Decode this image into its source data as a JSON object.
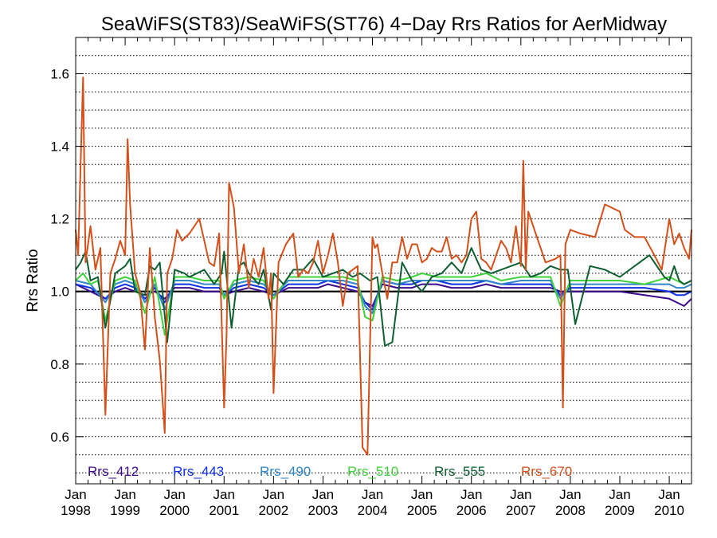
{
  "chart_data": {
    "type": "line",
    "title": "SeaWiFS(ST83)/SeaWiFS(ST76) 4−Day Rrs Ratios for AerMidway",
    "xlabel": "",
    "ylabel": "Rrs Ratio",
    "xlim": [
      1998.0,
      2010.45
    ],
    "ylim": [
      0.47,
      1.7
    ],
    "y_ticks": [
      0.6,
      0.8,
      1.0,
      1.2,
      1.4,
      1.6
    ],
    "x_ticks": [
      {
        "month": "Jan",
        "year": "1998",
        "x": 1998.0
      },
      {
        "month": "Jan",
        "year": "1999",
        "x": 1999.0
      },
      {
        "month": "Jan",
        "year": "2000",
        "x": 2000.0
      },
      {
        "month": "Jan",
        "year": "2001",
        "x": 2001.0
      },
      {
        "month": "Jan",
        "year": "2002",
        "x": 2002.0
      },
      {
        "month": "Jan",
        "year": "2003",
        "x": 2003.0
      },
      {
        "month": "Jan",
        "year": "2004",
        "x": 2004.0
      },
      {
        "month": "Jan",
        "year": "2005",
        "x": 2005.0
      },
      {
        "month": "Jan",
        "year": "2006",
        "x": 2006.0
      },
      {
        "month": "Jan",
        "year": "2007",
        "x": 2007.0
      },
      {
        "month": "Jan",
        "year": "2008",
        "x": 2008.0
      },
      {
        "month": "Jan",
        "year": "2009",
        "x": 2009.0
      },
      {
        "month": "Jan",
        "year": "2010",
        "x": 2010.0
      }
    ],
    "grid": "horizontal dotted",
    "reference_line": 1.0,
    "legend_position": "bottom",
    "series": [
      {
        "name": "Rrs_412",
        "color": "#3b0a8c",
        "x": [
          1998.0,
          1998.3,
          1998.6,
          1998.8,
          1999.0,
          1999.2,
          1999.4,
          1999.6,
          1999.8,
          2000.0,
          2000.3,
          2000.6,
          2000.9,
          2001.0,
          2001.2,
          2001.5,
          2001.8,
          2002.0,
          2002.3,
          2002.6,
          2002.9,
          2003.1,
          2003.4,
          2003.7,
          2003.85,
          2004.0,
          2004.2,
          2004.5,
          2004.8,
          2005.0,
          2005.3,
          2005.6,
          2006.0,
          2006.3,
          2006.6,
          2007.0,
          2007.3,
          2007.6,
          2007.8,
          2008.0,
          2008.5,
          2009.0,
          2009.5,
          2010.0,
          2010.15,
          2010.3,
          2010.45
        ],
        "y": [
          1.02,
          1.0,
          0.98,
          1.0,
          1.01,
          1.0,
          0.99,
          1.0,
          0.98,
          1.01,
          1.01,
          1.0,
          1.0,
          0.99,
          1.0,
          1.01,
          1.0,
          0.99,
          1.01,
          1.01,
          1.01,
          1.02,
          1.01,
          1.0,
          0.97,
          0.96,
          1.02,
          1.01,
          1.01,
          1.02,
          1.02,
          1.01,
          1.01,
          1.02,
          1.01,
          1.01,
          1.01,
          1.01,
          1.0,
          1.0,
          1.0,
          1.0,
          0.99,
          0.98,
          0.97,
          0.96,
          0.98
        ]
      },
      {
        "name": "Rrs_443",
        "color": "#1030e6",
        "x": [
          1998.0,
          1998.3,
          1998.6,
          1998.8,
          1999.0,
          1999.2,
          1999.4,
          1999.6,
          1999.8,
          2000.0,
          2000.3,
          2000.6,
          2000.9,
          2001.0,
          2001.2,
          2001.5,
          2001.8,
          2002.0,
          2002.3,
          2002.6,
          2002.9,
          2003.1,
          2003.4,
          2003.7,
          2003.85,
          2004.0,
          2004.2,
          2004.5,
          2004.8,
          2005.0,
          2005.3,
          2005.6,
          2006.0,
          2006.3,
          2006.6,
          2007.0,
          2007.3,
          2007.6,
          2007.8,
          2008.0,
          2008.5,
          2009.0,
          2009.5,
          2010.0,
          2010.15,
          2010.3,
          2010.45
        ],
        "y": [
          1.02,
          1.01,
          0.98,
          1.01,
          1.02,
          1.01,
          0.98,
          1.01,
          0.97,
          1.02,
          1.02,
          1.01,
          1.01,
          0.99,
          1.01,
          1.02,
          1.01,
          0.99,
          1.02,
          1.02,
          1.02,
          1.03,
          1.02,
          1.01,
          0.97,
          0.95,
          1.03,
          1.02,
          1.02,
          1.03,
          1.03,
          1.02,
          1.02,
          1.03,
          1.02,
          1.02,
          1.02,
          1.02,
          0.99,
          1.01,
          1.01,
          1.01,
          1.01,
          1.0,
          0.99,
          0.99,
          1.0
        ]
      },
      {
        "name": "Rrs_490",
        "color": "#2f86c8",
        "x": [
          1998.0,
          1998.3,
          1998.6,
          1998.8,
          1999.0,
          1999.2,
          1999.4,
          1999.6,
          1999.8,
          2000.0,
          2000.3,
          2000.6,
          2000.9,
          2001.0,
          2001.2,
          2001.5,
          2001.8,
          2002.0,
          2002.3,
          2002.6,
          2002.9,
          2003.1,
          2003.4,
          2003.7,
          2003.85,
          2004.0,
          2004.2,
          2004.5,
          2004.8,
          2005.0,
          2005.3,
          2005.6,
          2006.0,
          2006.3,
          2006.6,
          2007.0,
          2007.3,
          2007.6,
          2007.8,
          2008.0,
          2008.5,
          2009.0,
          2009.5,
          2010.0,
          2010.15,
          2010.3,
          2010.45
        ],
        "y": [
          1.03,
          1.02,
          0.97,
          1.02,
          1.03,
          1.02,
          0.97,
          1.02,
          0.95,
          1.03,
          1.03,
          1.02,
          1.02,
          0.99,
          1.02,
          1.03,
          1.02,
          0.99,
          1.03,
          1.03,
          1.03,
          1.03,
          1.03,
          1.02,
          0.96,
          0.94,
          1.03,
          1.02,
          1.03,
          1.03,
          1.03,
          1.03,
          1.03,
          1.03,
          1.02,
          1.03,
          1.03,
          1.03,
          0.98,
          1.02,
          1.02,
          1.02,
          1.02,
          1.02,
          1.01,
          1.01,
          1.02
        ]
      },
      {
        "name": "Rrs_510",
        "color": "#3fd23a",
        "x": [
          1998.0,
          1998.15,
          1998.3,
          1998.45,
          1998.6,
          1998.8,
          1999.0,
          1999.2,
          1999.4,
          1999.6,
          1999.8,
          2000.0,
          2000.3,
          2000.6,
          2000.9,
          2001.0,
          2001.2,
          2001.5,
          2001.8,
          2002.0,
          2002.3,
          2002.6,
          2002.9,
          2003.1,
          2003.4,
          2003.7,
          2003.85,
          2004.0,
          2004.2,
          2004.5,
          2004.8,
          2005.0,
          2005.3,
          2005.6,
          2006.0,
          2006.3,
          2006.6,
          2007.0,
          2007.3,
          2007.6,
          2007.8,
          2008.0,
          2008.5,
          2009.0,
          2009.5,
          2010.0,
          2010.15,
          2010.3,
          2010.45
        ],
        "y": [
          1.03,
          1.05,
          1.02,
          1.03,
          0.92,
          1.03,
          1.04,
          1.03,
          0.94,
          1.04,
          0.88,
          1.04,
          1.04,
          1.03,
          1.03,
          0.98,
          1.03,
          1.04,
          1.03,
          0.98,
          1.04,
          1.04,
          1.04,
          1.04,
          1.04,
          1.03,
          0.93,
          0.92,
          1.04,
          1.03,
          1.04,
          1.05,
          1.04,
          1.04,
          1.04,
          1.05,
          1.03,
          1.04,
          1.04,
          1.04,
          0.96,
          1.03,
          1.03,
          1.03,
          1.02,
          1.04,
          1.03,
          1.02,
          1.03
        ]
      },
      {
        "name": "Rrs_555",
        "color": "#0d5e30",
        "x": [
          1998.0,
          1998.1,
          1998.2,
          1998.3,
          1998.45,
          1998.6,
          1998.8,
          1999.0,
          1999.1,
          1999.2,
          1999.4,
          1999.5,
          1999.6,
          1999.7,
          1999.85,
          2000.0,
          2000.2,
          2000.3,
          2000.6,
          2000.8,
          2000.95,
          2001.0,
          2001.15,
          2001.3,
          2001.4,
          2001.5,
          2001.7,
          2001.8,
          2001.95,
          2002.0,
          2002.2,
          2002.4,
          2002.6,
          2002.8,
          2003.0,
          2003.2,
          2003.4,
          2003.6,
          2003.75,
          2003.95,
          2004.1,
          2004.25,
          2004.4,
          2004.6,
          2004.8,
          2005.0,
          2005.2,
          2005.4,
          2005.6,
          2005.8,
          2006.0,
          2006.2,
          2006.4,
          2006.6,
          2006.8,
          2007.0,
          2007.1,
          2007.2,
          2007.4,
          2007.6,
          2007.8,
          2007.95,
          2008.1,
          2008.4,
          2008.7,
          2009.0,
          2009.3,
          2009.6,
          2009.9,
          2010.0,
          2010.1,
          2010.2,
          2010.3,
          2010.45
        ],
        "y": [
          1.06,
          1.08,
          1.11,
          1.03,
          1.04,
          0.9,
          1.05,
          1.07,
          1.09,
          1.0,
          0.99,
          1.07,
          1.06,
          1.08,
          0.86,
          1.06,
          1.05,
          1.04,
          1.06,
          1.02,
          1.05,
          1.11,
          0.9,
          1.07,
          1.08,
          1.05,
          1.02,
          1.06,
          0.95,
          1.05,
          1.02,
          1.06,
          1.06,
          1.09,
          1.04,
          1.05,
          1.06,
          1.04,
          1.05,
          1.03,
          1.04,
          0.85,
          0.86,
          1.08,
          1.03,
          1.0,
          1.04,
          1.05,
          1.08,
          1.05,
          1.12,
          1.06,
          1.05,
          1.06,
          1.07,
          1.08,
          1.06,
          1.04,
          1.05,
          1.07,
          1.06,
          1.06,
          0.91,
          1.07,
          1.06,
          1.04,
          1.07,
          1.1,
          1.04,
          1.03,
          1.07,
          1.03,
          1.02,
          1.03
        ]
      },
      {
        "name": "Rrs_670",
        "color": "#d4501a",
        "x": [
          1998.0,
          1998.05,
          1998.1,
          1998.15,
          1998.2,
          1998.3,
          1998.4,
          1998.5,
          1998.6,
          1998.7,
          1998.8,
          1998.9,
          1999.0,
          1999.05,
          1999.1,
          1999.2,
          1999.3,
          1999.4,
          1999.5,
          1999.6,
          1999.7,
          1999.8,
          1999.85,
          1999.95,
          2000.05,
          2000.15,
          2000.3,
          2000.5,
          2000.7,
          2000.8,
          2000.9,
          2001.0,
          2001.05,
          2001.1,
          2001.2,
          2001.3,
          2001.4,
          2001.5,
          2001.6,
          2001.7,
          2001.8,
          2001.9,
          2001.95,
          2002.0,
          2002.1,
          2002.25,
          2002.4,
          2002.5,
          2002.6,
          2002.7,
          2002.8,
          2002.9,
          2003.0,
          2003.1,
          2003.2,
          2003.3,
          2003.4,
          2003.5,
          2003.6,
          2003.7,
          2003.8,
          2003.85,
          2003.9,
          2004.0,
          2004.05,
          2004.1,
          2004.2,
          2004.3,
          2004.4,
          2004.5,
          2004.6,
          2004.7,
          2004.8,
          2004.9,
          2005.0,
          2005.1,
          2005.2,
          2005.3,
          2005.4,
          2005.5,
          2005.6,
          2005.7,
          2005.8,
          2005.9,
          2006.0,
          2006.1,
          2006.2,
          2006.3,
          2006.4,
          2006.5,
          2006.6,
          2006.7,
          2006.8,
          2006.9,
          2007.0,
          2007.05,
          2007.1,
          2007.15,
          2007.3,
          2007.5,
          2007.7,
          2007.8,
          2007.85,
          2007.9,
          2008.0,
          2008.2,
          2008.5,
          2008.7,
          2009.0,
          2009.1,
          2009.3,
          2009.5,
          2009.7,
          2009.85,
          2010.0,
          2010.1,
          2010.2,
          2010.3,
          2010.4,
          2010.45
        ],
        "y": [
          1.17,
          1.1,
          1.35,
          1.59,
          1.08,
          1.18,
          1.06,
          1.12,
          0.66,
          1.05,
          1.09,
          1.14,
          1.1,
          1.42,
          1.24,
          1.05,
          1.0,
          0.84,
          1.12,
          0.93,
          0.81,
          0.61,
          1.05,
          1.09,
          1.17,
          1.14,
          1.16,
          1.2,
          1.08,
          1.07,
          1.16,
          0.68,
          0.88,
          1.3,
          1.23,
          1.05,
          1.13,
          1.01,
          1.09,
          1.04,
          1.12,
          0.98,
          1.05,
          0.72,
          1.08,
          1.13,
          1.16,
          1.04,
          1.06,
          1.05,
          1.08,
          1.14,
          1.05,
          1.1,
          1.16,
          1.08,
          0.96,
          1.05,
          1.06,
          1.07,
          0.57,
          0.56,
          0.55,
          1.15,
          1.12,
          1.13,
          1.05,
          0.98,
          1.08,
          1.08,
          1.15,
          1.09,
          1.13,
          1.13,
          1.08,
          1.09,
          1.12,
          1.11,
          1.11,
          1.15,
          1.09,
          1.1,
          1.08,
          1.1,
          1.2,
          1.22,
          1.09,
          1.08,
          1.06,
          1.1,
          1.14,
          1.12,
          1.08,
          1.18,
          1.07,
          1.36,
          1.06,
          1.22,
          1.16,
          1.08,
          1.09,
          1.1,
          0.68,
          1.13,
          1.17,
          1.16,
          1.15,
          1.24,
          1.22,
          1.17,
          1.15,
          1.15,
          1.1,
          1.06,
          1.2,
          1.13,
          1.16,
          1.12,
          1.09,
          1.17
        ]
      }
    ]
  }
}
